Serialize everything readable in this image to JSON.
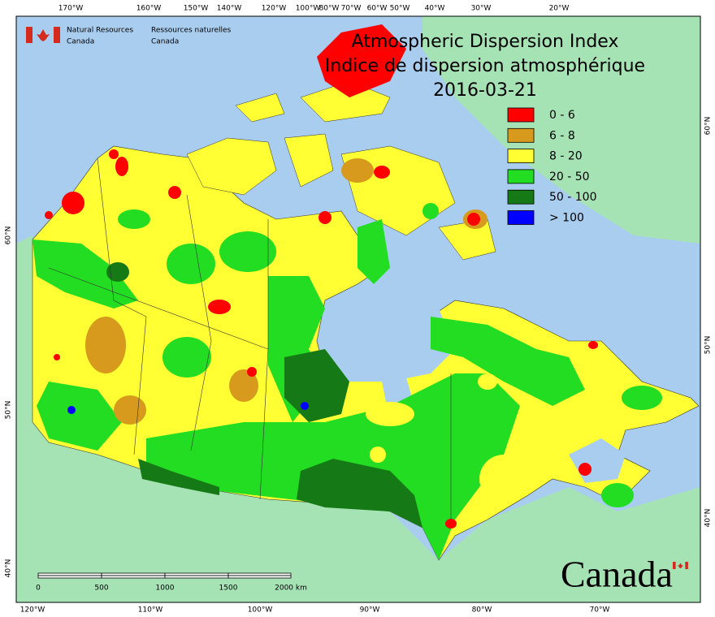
{
  "header": {
    "title_en": "Atmospheric Dispersion Index",
    "title_fr": "Indice de dispersion atmosphérique",
    "date": "2016-03-21"
  },
  "agency": {
    "en": [
      "Natural Resources",
      "Canada"
    ],
    "fr": [
      "Ressources naturelles",
      "Canada"
    ]
  },
  "legend": [
    {
      "label": "0 - 6",
      "color": "#ff0000"
    },
    {
      "label": "6 - 8",
      "color": "#d89a1c"
    },
    {
      "label": "8 - 20",
      "color": "#ffff33"
    },
    {
      "label": "20 - 50",
      "color": "#22dd22"
    },
    {
      "label": "50 - 100",
      "color": "#157a15"
    },
    {
      "label": "> 100",
      "color": "#0000ff"
    }
  ],
  "top_labels": [
    "170°W",
    "160°W",
    "150°W",
    "140°W",
    "120°W",
    "100°W",
    "80°W",
    "70°W",
    "60°W",
    "50°W",
    "40°W",
    "30°W",
    "20°W"
  ],
  "bottom_labels": [
    "120°W",
    "110°W",
    "100°W",
    "90°W",
    "80°W",
    "70°W"
  ],
  "left_labels": [
    "60°N",
    "50°N",
    "40°N"
  ],
  "right_labels": [
    "60°N",
    "50°N",
    "40°N"
  ],
  "scale_bar": [
    "0",
    "500",
    "1000",
    "1500",
    "2000 km"
  ],
  "wordmark": "Canada"
}
